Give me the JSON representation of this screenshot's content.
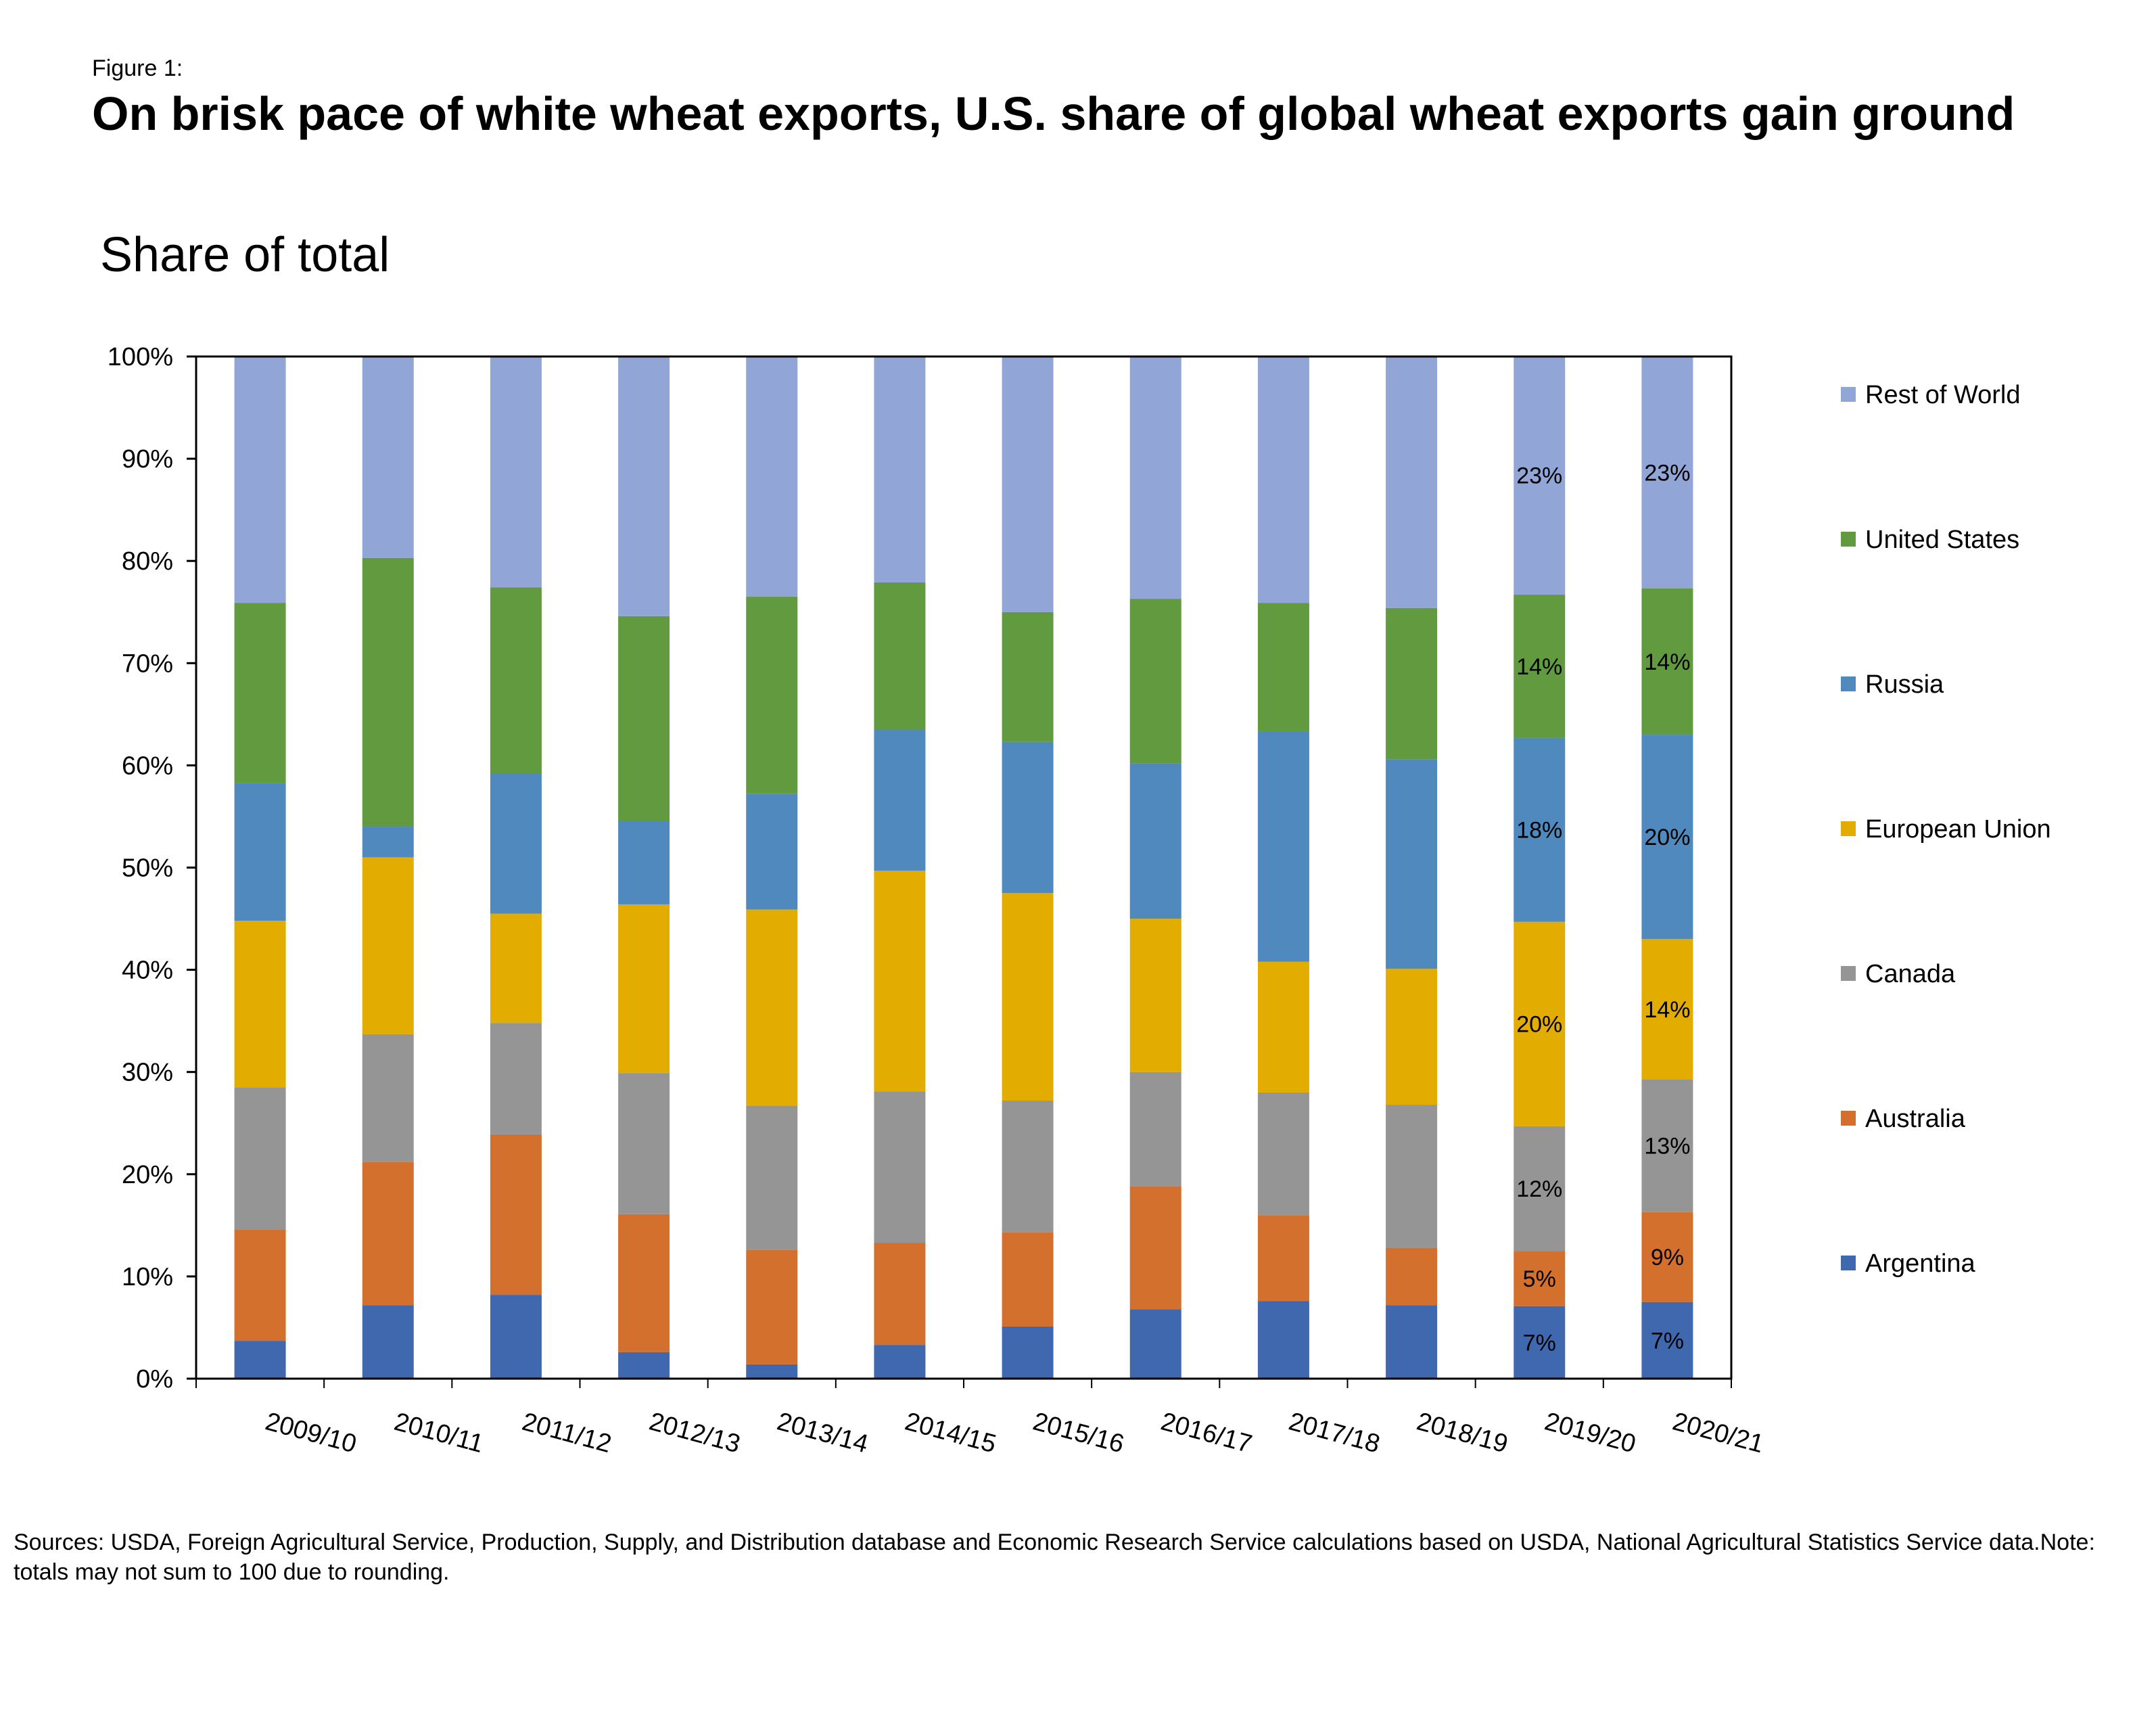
{
  "figure_label": "Figure 1:",
  "title": "On brisk pace of white wheat exports, U.S. share of global wheat exports gain ground",
  "sources": "Sources: USDA, Foreign Agricultural Service, Production, Supply, and Distribution database and Economic Research Service calculations based on USDA, National Agricultural Statistics Service data.Note: totals may not sum to 100 due to rounding.",
  "chart_data": {
    "type": "bar",
    "stacked": true,
    "ylabel": "Share of total",
    "ylim": [
      0,
      100
    ],
    "yticks": [
      "0%",
      "10%",
      "20%",
      "30%",
      "40%",
      "50%",
      "60%",
      "70%",
      "80%",
      "90%",
      "100%"
    ],
    "legend_position": "right",
    "categories": [
      "2009/10",
      "2010/11",
      "2011/12",
      "2012/13",
      "2013/14",
      "2014/15",
      "2015/16",
      "2016/17",
      "2017/18",
      "2018/19",
      "2019/20",
      "2020/21"
    ],
    "series": [
      {
        "name": "Argentina",
        "color": "#3F68AE",
        "values": [
          3.7,
          7.2,
          8.2,
          2.6,
          1.4,
          3.3,
          5.1,
          6.8,
          7.6,
          7.2,
          7.1,
          7.5
        ],
        "labels": [
          "",
          "",
          "",
          "",
          "",
          "",
          "",
          "",
          "",
          "",
          "7%",
          "7%"
        ]
      },
      {
        "name": "Australia",
        "color": "#D3702E",
        "values": [
          10.9,
          14.0,
          15.7,
          13.5,
          11.2,
          10.0,
          9.2,
          12.0,
          8.4,
          5.6,
          5.4,
          8.8
        ],
        "labels": [
          "",
          "",
          "",
          "",
          "",
          "",
          "",
          "",
          "",
          "",
          "5%",
          "9%"
        ]
      },
      {
        "name": "Canada",
        "color": "#959595",
        "values": [
          13.9,
          12.5,
          10.9,
          13.8,
          14.1,
          14.8,
          12.9,
          11.2,
          12.0,
          14.0,
          12.2,
          13.0
        ],
        "labels": [
          "",
          "",
          "",
          "",
          "",
          "",
          "",
          "",
          "",
          "",
          "12%",
          "13%"
        ]
      },
      {
        "name": "European Union",
        "color": "#E2AC00",
        "values": [
          16.3,
          17.3,
          10.7,
          16.5,
          19.2,
          21.6,
          20.3,
          15.0,
          12.8,
          13.3,
          20.0,
          13.7
        ],
        "labels": [
          "",
          "",
          "",
          "",
          "",
          "",
          "",
          "",
          "",
          "",
          "20%",
          "14%"
        ]
      },
      {
        "name": "Russia",
        "color": "#4F89BD",
        "values": [
          13.5,
          3.0,
          13.7,
          8.2,
          11.3,
          13.8,
          14.8,
          15.2,
          22.5,
          20.5,
          18.0,
          20.0
        ],
        "labels": [
          "",
          "",
          "",
          "",
          "",
          "",
          "",
          "",
          "",
          "",
          "18%",
          "20%"
        ]
      },
      {
        "name": "United States",
        "color": "#619A3F",
        "values": [
          17.6,
          26.3,
          18.2,
          20.0,
          19.3,
          14.4,
          12.7,
          16.1,
          12.6,
          14.8,
          14.0,
          14.3
        ],
        "labels": [
          "",
          "",
          "",
          "",
          "",
          "",
          "",
          "",
          "",
          "",
          "14%",
          "14%"
        ]
      },
      {
        "name": "Rest of World",
        "color": "#91A5D6",
        "values": [
          24.1,
          19.7,
          22.6,
          25.5,
          23.5,
          22.1,
          25.0,
          23.7,
          24.1,
          24.6,
          23.4,
          22.7
        ],
        "labels": [
          "",
          "",
          "",
          "",
          "",
          "",
          "",
          "",
          "",
          "",
          "23%",
          "23%"
        ]
      }
    ]
  }
}
